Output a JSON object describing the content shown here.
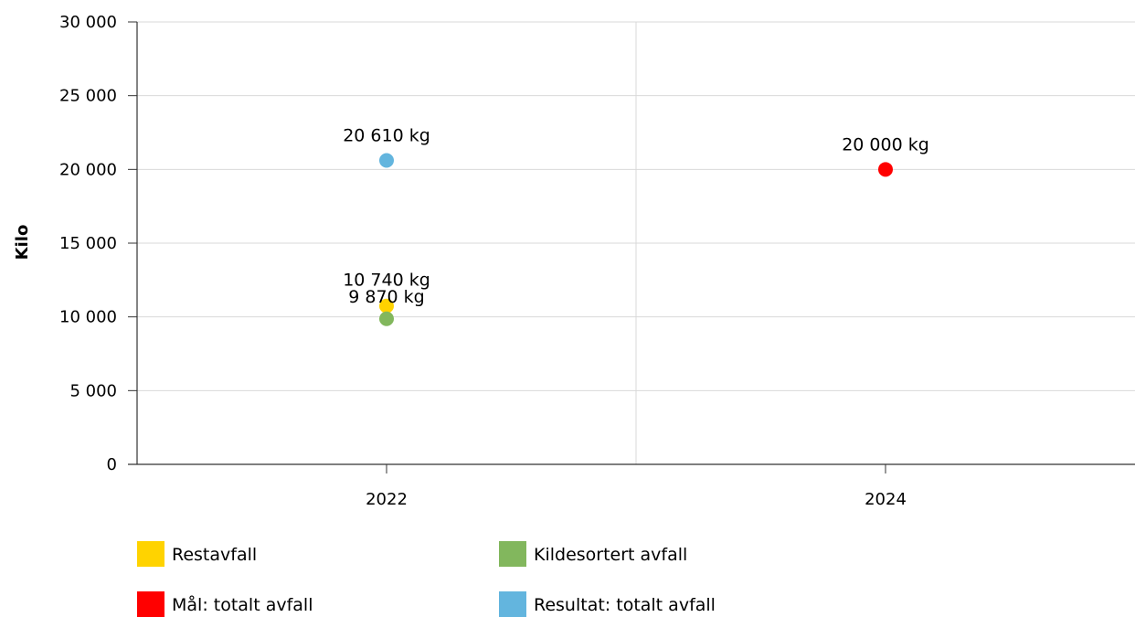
{
  "chart_data": {
    "type": "scatter",
    "ylabel": "Kilo",
    "xlabel": "",
    "ylim": [
      0,
      30000
    ],
    "y_ticks": [
      "0",
      "5 000",
      "10 000",
      "15 000",
      "20 000",
      "25 000",
      "30 000"
    ],
    "y_tick_values": [
      0,
      5000,
      10000,
      15000,
      20000,
      25000,
      30000
    ],
    "categories": [
      "2022",
      "2024"
    ],
    "grid": true,
    "legend_position": "bottom",
    "series": [
      {
        "name": "Restavfall",
        "color": "#FFD300",
        "points": [
          {
            "x": "2022",
            "y": 10740,
            "label": "10 740 kg"
          }
        ]
      },
      {
        "name": "Kildesortert avfall",
        "color": "#82B75D",
        "points": [
          {
            "x": "2022",
            "y": 9870,
            "label": "9 870 kg"
          }
        ]
      },
      {
        "name": "Mål: totalt avfall",
        "color": "#FF0000",
        "points": [
          {
            "x": "2024",
            "y": 20000,
            "label": "20 000 kg"
          }
        ]
      },
      {
        "name": "Resultat: totalt avfall",
        "color": "#63B5DE",
        "points": [
          {
            "x": "2022",
            "y": 20610,
            "label": "20 610 kg"
          }
        ]
      }
    ]
  }
}
